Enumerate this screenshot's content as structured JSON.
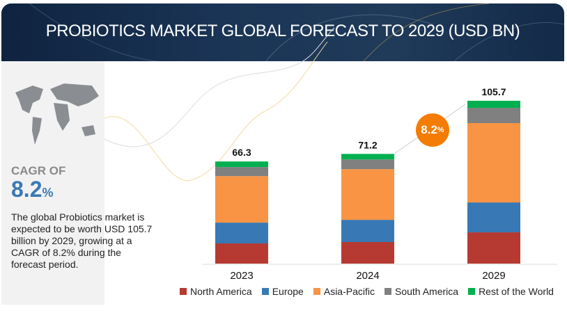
{
  "header": {
    "title": "PROBIOTICS MARKET GLOBAL FORECAST TO 2029 (USD BN)"
  },
  "sidebar": {
    "cagr_label": "CAGR OF",
    "cagr_value": "8.2",
    "cagr_unit": "%",
    "description": "The global Probiotics market is expected to be worth USD 105.7 billion by 2029, growing at a CAGR of 8.2% during the forecast period."
  },
  "chart_data": {
    "type": "bar",
    "stacked": true,
    "title": "PROBIOTICS MARKET GLOBAL FORECAST TO 2029 (USD BN)",
    "categories": [
      "2023",
      "2024",
      "2029"
    ],
    "totals": [
      "66.3",
      "71.2",
      "105.7"
    ],
    "series": [
      {
        "name": "North America",
        "color": "#b63a32",
        "values": [
          13.1,
          14.0,
          20.3
        ]
      },
      {
        "name": "Europe",
        "color": "#3878b4",
        "values": [
          13.5,
          14.4,
          19.4
        ]
      },
      {
        "name": "Asia-Pacific",
        "color": "#f89444",
        "values": [
          30.2,
          32.9,
          51.5
        ]
      },
      {
        "name": "South America",
        "color": "#808080",
        "values": [
          5.9,
          6.3,
          9.9
        ]
      },
      {
        "name": "Rest of the World",
        "color": "#00b050",
        "values": [
          3.6,
          3.6,
          4.6
        ]
      }
    ],
    "ylim": [
      0,
      110
    ],
    "legend": "bottom",
    "annotation": {
      "value": "8.2",
      "unit": "%",
      "color": "#f47c00"
    }
  }
}
